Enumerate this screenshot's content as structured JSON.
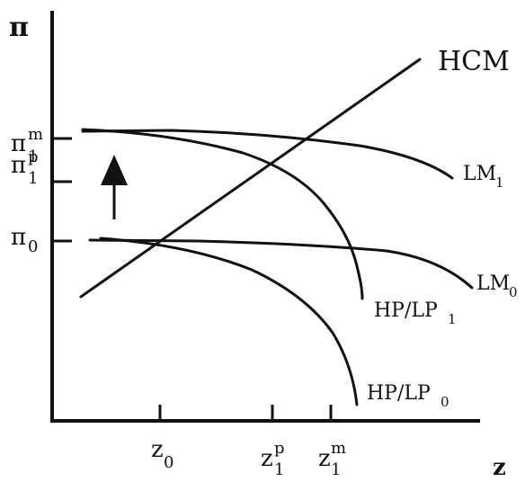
{
  "axes": {
    "y_label": "π",
    "x_label": "z"
  },
  "y_ticks": {
    "pi1m": {
      "base": "π",
      "sub": "1",
      "sup": "m"
    },
    "pi1p": {
      "base": "π",
      "sub": "1",
      "sup": "p"
    },
    "pi0": {
      "base": "π",
      "sub": "0"
    }
  },
  "x_ticks": {
    "z0": {
      "base": "z",
      "sub": "0"
    },
    "z1p": {
      "base": "z",
      "sub": "1",
      "sup": "p"
    },
    "z1m": {
      "base": "z",
      "sub": "1",
      "sup": "m"
    }
  },
  "curves": {
    "hcm": {
      "label": "HCM"
    },
    "lm1": {
      "base": "LM",
      "sub": "1"
    },
    "lm0": {
      "base": "LM",
      "sub": "0"
    },
    "hplp1": {
      "base": "HP/LP",
      "sub": "1"
    },
    "hplp0": {
      "base": "HP/LP",
      "sub": "0"
    }
  },
  "colors": {
    "ink": "#111111",
    "background": "#ffffff"
  }
}
